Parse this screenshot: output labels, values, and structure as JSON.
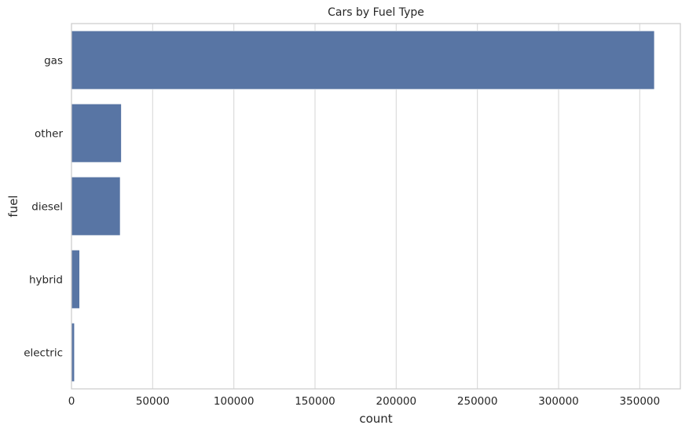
{
  "chart_data": {
    "type": "bar",
    "orientation": "horizontal",
    "title": "Cars by Fuel Type",
    "xlabel": "count",
    "ylabel": "fuel",
    "categories": [
      "gas",
      "other",
      "diesel",
      "hybrid",
      "electric"
    ],
    "values": [
      359000,
      30700,
      30000,
      5000,
      1800
    ],
    "xlim": [
      0,
      375000
    ],
    "xticks": [
      0,
      50000,
      100000,
      150000,
      200000,
      250000,
      300000,
      350000
    ],
    "grid": "vertical",
    "bar_color": "#5875a4"
  }
}
